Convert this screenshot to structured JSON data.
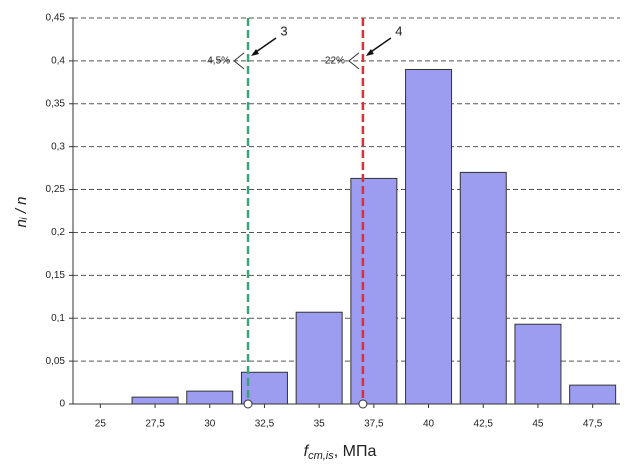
{
  "chart_data": {
    "type": "bar",
    "x": [
      25,
      27.5,
      30,
      32.5,
      35,
      37.5,
      40,
      42.5,
      45,
      47.5
    ],
    "values": [
      0,
      0.008,
      0.015,
      0.037,
      0.107,
      0.263,
      0.39,
      0.27,
      0.093,
      0.022
    ],
    "color": "#9c9cf0",
    "xlim": [
      23.75,
      48.75
    ],
    "xticks": [
      25,
      {
        "value": 27.5,
        "label": "27,5"
      },
      30,
      {
        "value": 32.5,
        "label": "32,5"
      },
      35,
      {
        "value": 37.5,
        "label": "37,5"
      },
      40,
      {
        "value": 42.5,
        "label": "42,5"
      },
      45,
      {
        "value": 47.5,
        "label": "47,5"
      }
    ],
    "ylim": [
      0,
      0.45
    ],
    "yticks": [
      0,
      {
        "value": 0.05,
        "label": "0,05"
      },
      {
        "value": 0.1,
        "label": "0,1"
      },
      {
        "value": 0.15,
        "label": "0,15"
      },
      {
        "value": 0.2,
        "label": "0,2"
      },
      {
        "value": 0.25,
        "label": "0,25"
      },
      {
        "value": 0.3,
        "label": "0,3"
      },
      {
        "value": 0.35,
        "label": "0,35"
      },
      {
        "value": 0.4,
        "label": "0,4"
      },
      {
        "value": 0.45,
        "label": "0,45"
      }
    ],
    "grid": true,
    "ylabel": "nᵢ / n",
    "xlabel": {
      "symbol": "f",
      "subscript": "cm,is",
      "unit": ", МПа"
    },
    "reference_lines": [
      {
        "x": 31.75,
        "color": "#3aa37a",
        "label": "3",
        "share_label": "4,5%"
      },
      {
        "x": 37.0,
        "color": "#d9303a",
        "label": "4",
        "share_label": "22%"
      }
    ]
  }
}
